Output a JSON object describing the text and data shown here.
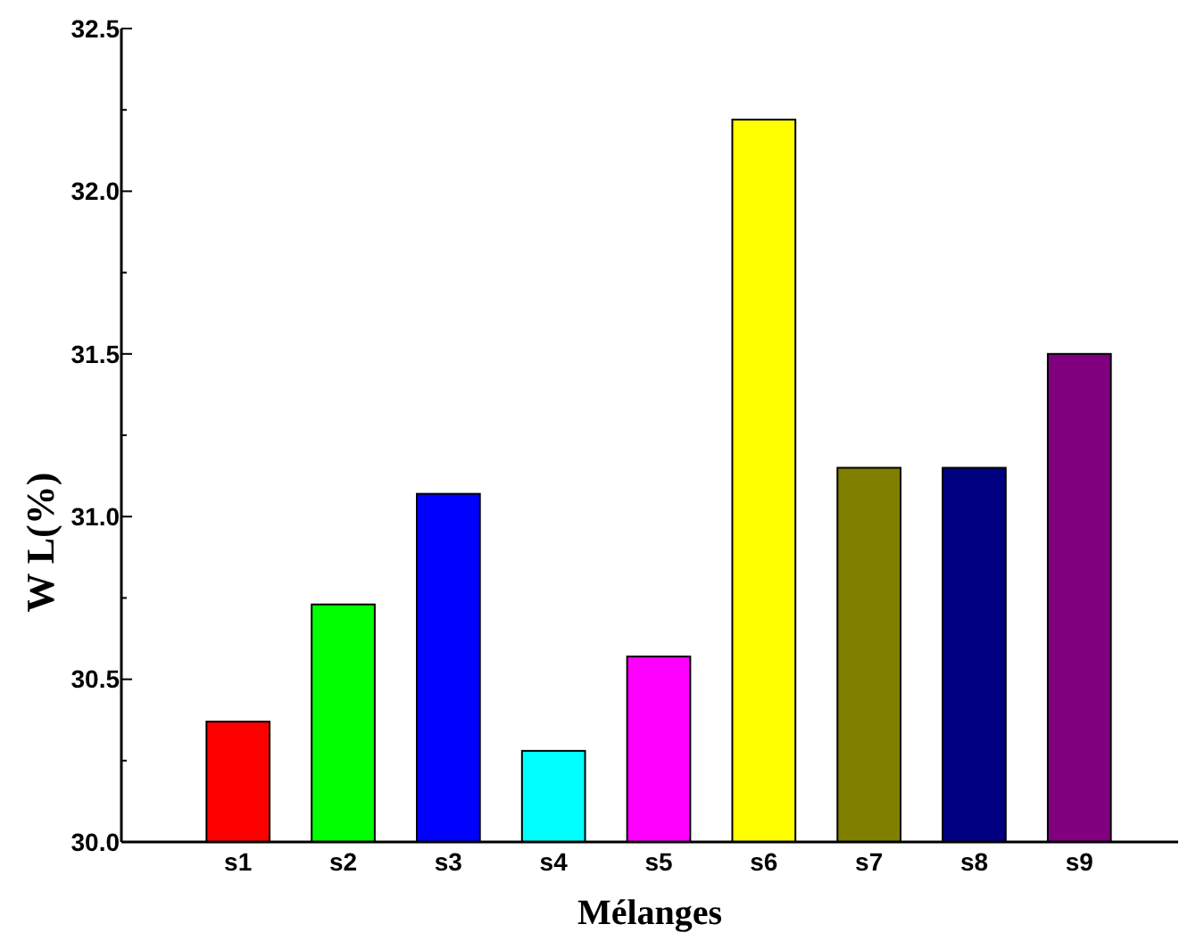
{
  "chart_data": {
    "type": "bar",
    "xlabel": "Mélanges",
    "ylabel": "W L(%)",
    "categories": [
      "s1",
      "s2",
      "s3",
      "s4",
      "s5",
      "s6",
      "s7",
      "s8",
      "s9"
    ],
    "values": [
      30.37,
      30.73,
      31.07,
      30.28,
      30.57,
      32.22,
      31.15,
      31.15,
      31.5
    ],
    "colors": [
      "#ff0000",
      "#00ff00",
      "#0000ff",
      "#00ffff",
      "#ff00ff",
      "#ffff00",
      "#808000",
      "#000080",
      "#800080"
    ],
    "ylim": [
      30.0,
      32.5
    ],
    "yticks": [
      {
        "value": 30,
        "label": "30.0"
      },
      {
        "value": 30.5,
        "label": "30.5"
      },
      {
        "value": 31,
        "label": "31.0"
      },
      {
        "value": 31.5,
        "label": "31.5"
      },
      {
        "value": 32,
        "label": "32.0"
      },
      {
        "value": 32.5,
        "label": "32.5"
      }
    ],
    "grid": false
  }
}
